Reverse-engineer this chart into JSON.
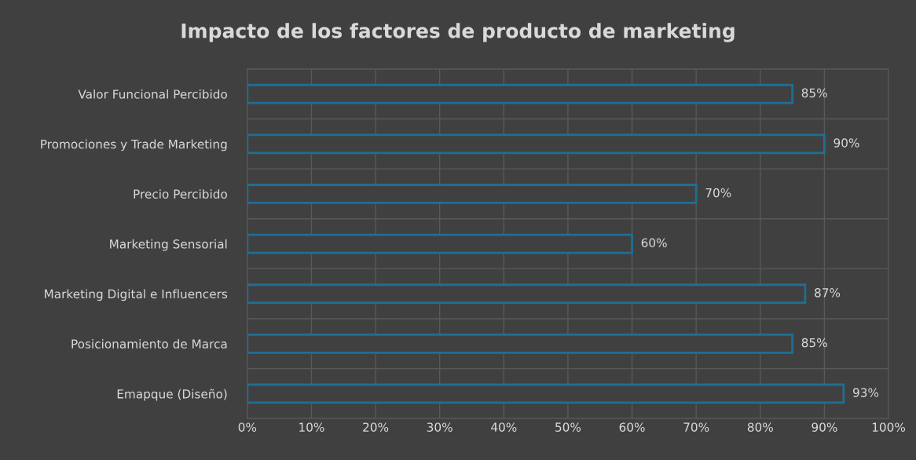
{
  "chart_data": {
    "type": "bar",
    "orientation": "horizontal",
    "title": "Impacto de los factores de producto de marketing",
    "categories": [
      "Valor Funcional Percibido",
      "Promociones y Trade Marketing",
      "Precio Percibido",
      "Marketing Sensorial",
      "Marketing Digital e Influencers",
      "Posicionamiento de Marca",
      "Emapque (Diseño)"
    ],
    "values": [
      85,
      90,
      70,
      60,
      87,
      85,
      93
    ],
    "value_labels": [
      "85%",
      "90%",
      "70%",
      "60%",
      "87%",
      "85%",
      "93%"
    ],
    "color": "#1e6f94",
    "xlim": [
      0,
      100
    ],
    "xticks": [
      {
        "value": 0,
        "label": "0%"
      },
      {
        "value": 10,
        "label": "10%"
      },
      {
        "value": 20,
        "label": "20%"
      },
      {
        "value": 30,
        "label": "30%"
      },
      {
        "value": 40,
        "label": "40%"
      },
      {
        "value": 50,
        "label": "50%"
      },
      {
        "value": 60,
        "label": "60%"
      },
      {
        "value": 70,
        "label": "70%"
      },
      {
        "value": 80,
        "label": "80%"
      },
      {
        "value": 90,
        "label": "90%"
      },
      {
        "value": 100,
        "label": "100%"
      }
    ],
    "grid": true
  }
}
